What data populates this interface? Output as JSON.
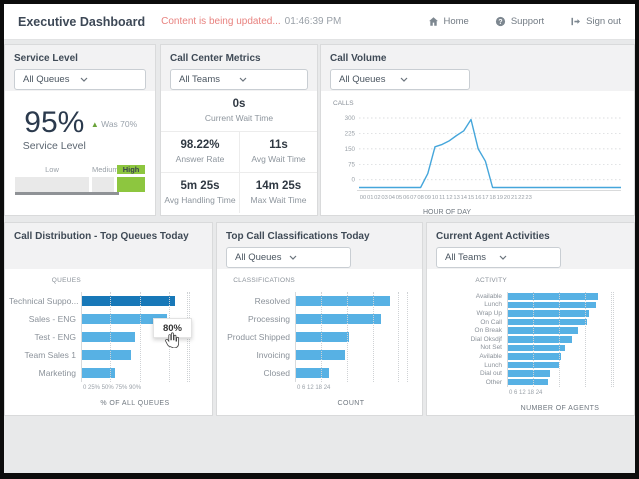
{
  "header": {
    "title": "Executive Dashboard",
    "status_message": "Content is being updated...",
    "timestamp": "01:46:39 PM",
    "nav": [
      {
        "label": "Home",
        "icon": "home-icon"
      },
      {
        "label": "Support",
        "icon": "support-icon"
      },
      {
        "label": "Sign out",
        "icon": "sign-out-icon"
      }
    ]
  },
  "colors": {
    "bar_blue": "#57b1e4",
    "bar_blue_hover": "#1878b8",
    "line_blue": "#45a6db",
    "green": "#8dc63f",
    "status_red": "#e8827f"
  },
  "panels": {
    "service_level": {
      "title": "Service Level",
      "filter_value": "All Queues",
      "value": "95%",
      "value_label": "Service Level",
      "trend_arrow": "▲",
      "trend_text": "Was 70%",
      "gauge_labels": [
        "Low",
        "Medium",
        "High"
      ],
      "gauge_active": "High"
    },
    "call_center_metrics": {
      "title": "Call Center Metrics",
      "filter_value": "All Teams",
      "metrics": [
        {
          "value": "0s",
          "label": "Current Wait Time"
        },
        {
          "value": "98.22%",
          "label": "Answer Rate"
        },
        {
          "value": "11s",
          "label": "Avg Wait Time"
        },
        {
          "value": "5m 25s",
          "label": "Avg Handling Time"
        },
        {
          "value": "14m 25s",
          "label": "Max Wait Time"
        }
      ]
    },
    "call_volume": {
      "title": "Call Volume",
      "filter_value": "All Queues"
    },
    "call_distribution": {
      "title": "Call Distribution - Top Queues Today"
    },
    "classifications": {
      "title": "Top Call Classifications Today",
      "filter_value": "All Queues"
    },
    "agent_activities": {
      "title": "Current Agent Activities",
      "filter_value": "All Teams"
    }
  },
  "chart_data": [
    {
      "id": "call_volume",
      "type": "line",
      "ylabel": "CALLS",
      "xlabel": "HOUR OF DAY",
      "x_tick_labels": [
        "00",
        "01",
        "02",
        "03",
        "04",
        "05",
        "06",
        "07",
        "08",
        "09",
        "10",
        "11",
        "12",
        "13",
        "14",
        "15",
        "16",
        "17",
        "18",
        "19",
        "20",
        "21",
        "22",
        "23"
      ],
      "yticks": [
        0,
        75,
        150,
        225,
        300
      ],
      "ylim": [
        0,
        310
      ],
      "values": [
        0,
        0,
        0,
        0,
        0,
        0,
        0,
        0,
        0,
        30,
        160,
        172,
        190,
        215,
        238,
        293,
        150,
        90,
        0,
        0,
        0,
        0,
        0,
        0
      ]
    },
    {
      "id": "call_distribution",
      "type": "bar",
      "orientation": "horizontal",
      "axis_title": "QUEUES",
      "xlabel": "% OF ALL QUEUES",
      "categories": [
        "Technical Suppo...",
        "Sales - ENG",
        "Test - ENG",
        "Team Sales 1",
        "Marketing"
      ],
      "values": [
        80,
        73,
        46,
        43,
        29
      ],
      "xticks": [
        0,
        25,
        50,
        75,
        90
      ],
      "x_ticks_display": "0 25% 50% 75% 90%",
      "xlim": [
        0,
        92
      ],
      "highlight_index": 0,
      "tooltip": "80%"
    },
    {
      "id": "classifications",
      "type": "bar",
      "orientation": "horizontal",
      "axis_title": "CLASSIFICATIONS",
      "xlabel": "COUNT",
      "categories": [
        "Resolved",
        "Processing",
        "Product Shipped",
        "Invoicing",
        "Closed"
      ],
      "values": [
        22,
        20,
        12.5,
        11.5,
        8
      ],
      "xticks": [
        0,
        6,
        12,
        18,
        24
      ],
      "x_ticks_display": "0 6 12 18 24",
      "xlim": [
        0,
        26
      ]
    },
    {
      "id": "agent_activities",
      "type": "bar",
      "orientation": "horizontal",
      "axis_title": "ACTIVITY",
      "xlabel": "NUMBER OF AGENTS",
      "categories": [
        "Available",
        "Lunch",
        "Wrap Up",
        "On Call",
        "On Break",
        "Dial Oksdjf",
        "Not Set",
        "Avilable",
        "Lunch",
        "Dial out",
        "Other"
      ],
      "values": [
        21,
        20.5,
        19,
        18.5,
        16.5,
        15,
        13.5,
        12.5,
        12,
        10,
        9.5
      ],
      "xticks": [
        0,
        6,
        12,
        18,
        24
      ],
      "x_ticks_display": "0 6 12 18 24",
      "xlim": [
        0,
        24.5
      ]
    }
  ]
}
